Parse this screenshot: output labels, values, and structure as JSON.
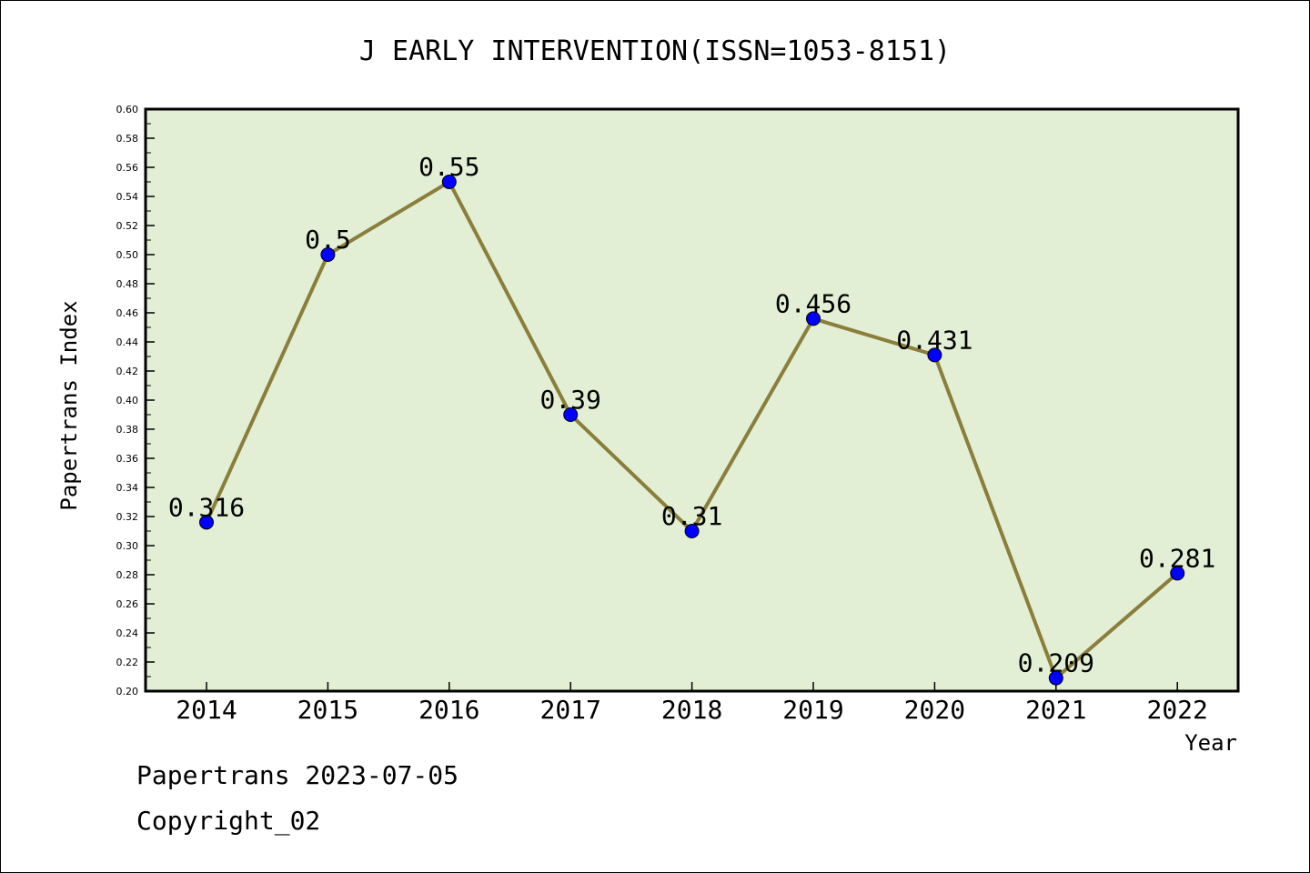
{
  "chart_data": {
    "type": "line",
    "title": "J EARLY INTERVENTION(ISSN=1053-8151)",
    "xlabel": "Year",
    "ylabel": "Papertrans Index",
    "categories": [
      "2014",
      "2015",
      "2016",
      "2017",
      "2018",
      "2019",
      "2020",
      "2021",
      "2022"
    ],
    "series": [
      {
        "values": [
          0.316,
          0.5,
          0.55,
          0.39,
          0.31,
          0.456,
          0.431,
          0.209,
          0.281
        ],
        "labels": [
          "0.316",
          "0.5",
          "0.55",
          "0.39",
          "0.31",
          "0.456",
          "0.431",
          "0.209",
          "0.281"
        ]
      }
    ],
    "ylim": [
      0.2,
      0.6
    ],
    "ytick_step": 0.02,
    "ytick_labels": [
      "0.20",
      "0.22",
      "0.24",
      "0.26",
      "0.28",
      "0.30",
      "0.32",
      "0.34",
      "0.36",
      "0.38",
      "0.40",
      "0.42",
      "0.44",
      "0.46",
      "0.48",
      "0.50",
      "0.52",
      "0.54",
      "0.56",
      "0.58",
      "0.60"
    ],
    "grid": false,
    "colors": {
      "plot_background": "#e2efd5",
      "line": "#8b7d3a",
      "marker": "#0000ff"
    }
  },
  "footer": {
    "line1": "Papertrans 2023-07-05",
    "line2": "Copyright_02"
  }
}
